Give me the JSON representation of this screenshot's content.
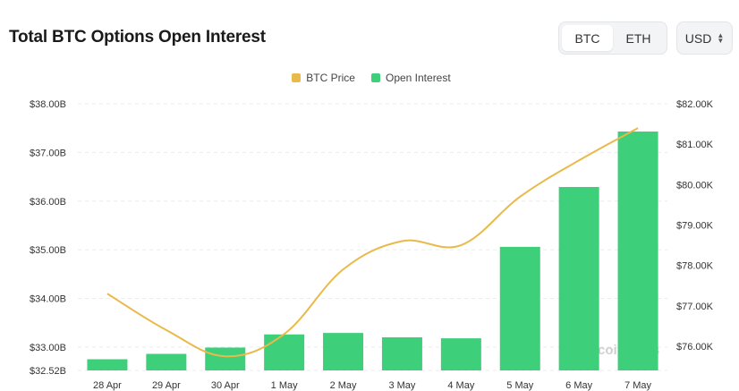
{
  "header": {
    "title": "Total BTC Options Open Interest",
    "asset_tabs": [
      {
        "label": "BTC",
        "active": true
      },
      {
        "label": "ETH",
        "active": false
      }
    ],
    "currency": "USD"
  },
  "legend": [
    {
      "label": "BTC Price",
      "color": "#e9b94a"
    },
    {
      "label": "Open Interest",
      "color": "#3ecf7a"
    }
  ],
  "watermark": "coinglass",
  "chart_data": {
    "type": "bar",
    "categories": [
      "28 Apr",
      "29 Apr",
      "30 Apr",
      "1 May",
      "2 May",
      "3 May",
      "4 May",
      "5 May",
      "6 May",
      "7 May"
    ],
    "series": [
      {
        "name": "Open Interest",
        "type": "bar",
        "axis": "left",
        "values": [
          32.75,
          32.86,
          32.99,
          33.26,
          33.29,
          33.2,
          33.18,
          35.06,
          36.29,
          37.43
        ]
      },
      {
        "name": "BTC Price",
        "type": "line",
        "axis": "right",
        "values": [
          77300,
          76400,
          75750,
          76300,
          77900,
          78600,
          78500,
          79700,
          80600,
          81400
        ]
      }
    ],
    "y_left": {
      "ticks": [
        "$32.52B",
        "$33.00B",
        "$34.00B",
        "$35.00B",
        "$36.00B",
        "$37.00B",
        "$38.00B"
      ],
      "tick_values": [
        32.52,
        33,
        34,
        35,
        36,
        37,
        38
      ],
      "min": 32.52,
      "max": 38
    },
    "y_right": {
      "ticks": [
        "$76.00K",
        "$77.00K",
        "$78.00K",
        "$79.00K",
        "$80.00K",
        "$81.00K",
        "$82.00K"
      ],
      "tick_values": [
        76000,
        77000,
        78000,
        79000,
        80000,
        81000,
        82000
      ],
      "min": 75400,
      "max": 82000
    },
    "grid": true,
    "legend_position": "top-center",
    "colors": {
      "bar": "#3ecf7a",
      "line": "#e9b94a"
    }
  }
}
